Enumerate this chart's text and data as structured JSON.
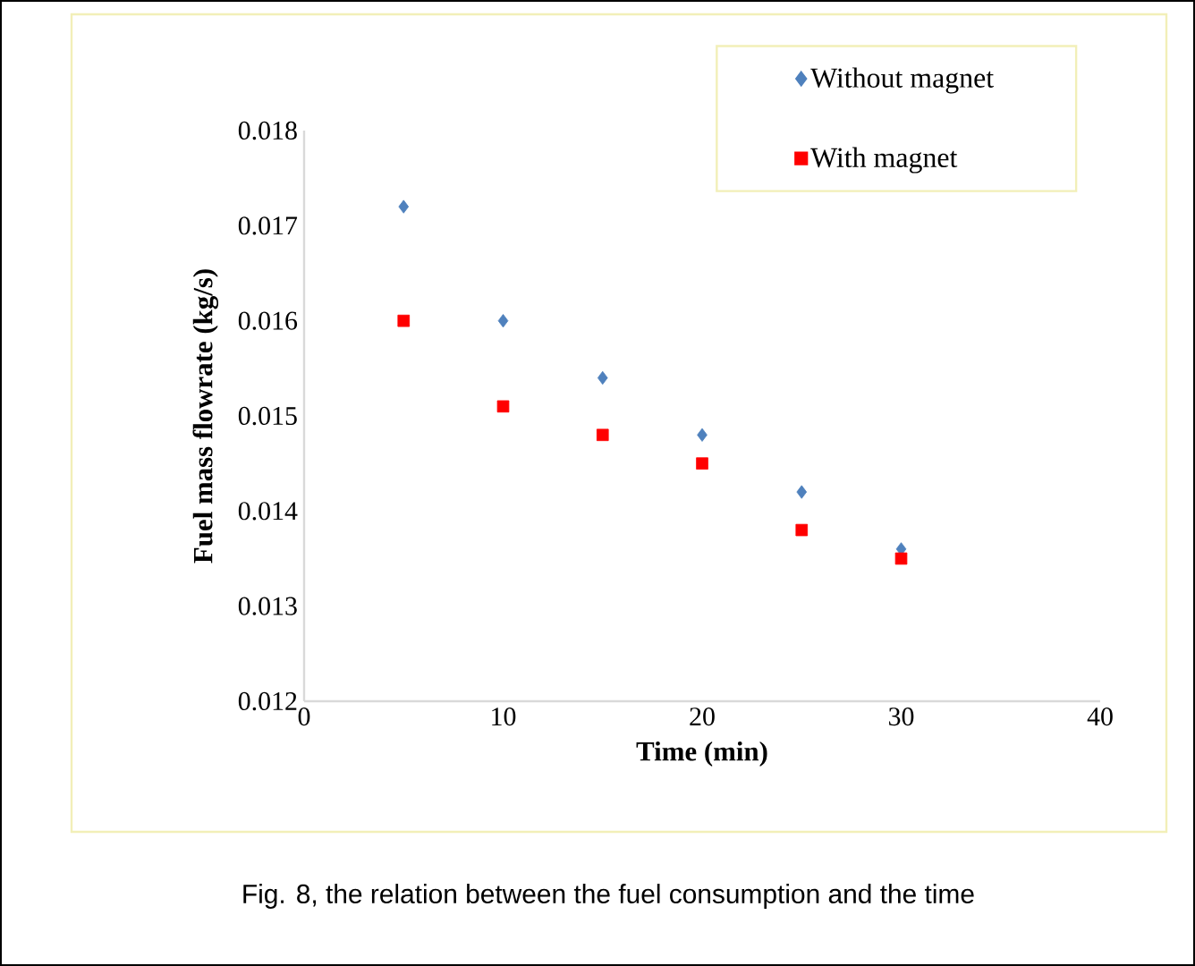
{
  "chart_data": {
    "type": "scatter",
    "xlabel": "Time (min)",
    "ylabel": "Fuel mass flowrate  (kg/s)",
    "x": [
      5,
      10,
      15,
      20,
      25,
      30
    ],
    "series": [
      {
        "name": "Without magnet",
        "color": "#4f81bd",
        "marker": "diamond",
        "values": [
          0.0172,
          0.016,
          0.0154,
          0.0148,
          0.0142,
          0.0136
        ]
      },
      {
        "name": "With magnet",
        "color": "#ff0000",
        "marker": "square",
        "values": [
          0.016,
          0.0151,
          0.0148,
          0.0145,
          0.0138,
          0.0135
        ]
      }
    ],
    "xlim": [
      0,
      40
    ],
    "xticks": [
      0,
      10,
      20,
      30,
      40
    ],
    "ylim": [
      0.012,
      0.018
    ],
    "yticks": [
      0.012,
      0.013,
      0.014,
      0.015,
      0.016,
      0.017,
      0.018
    ],
    "grid": false,
    "legend": "top right",
    "annotations": [
      "Fig. 8, the relation between the fuel consumption and the time"
    ]
  }
}
